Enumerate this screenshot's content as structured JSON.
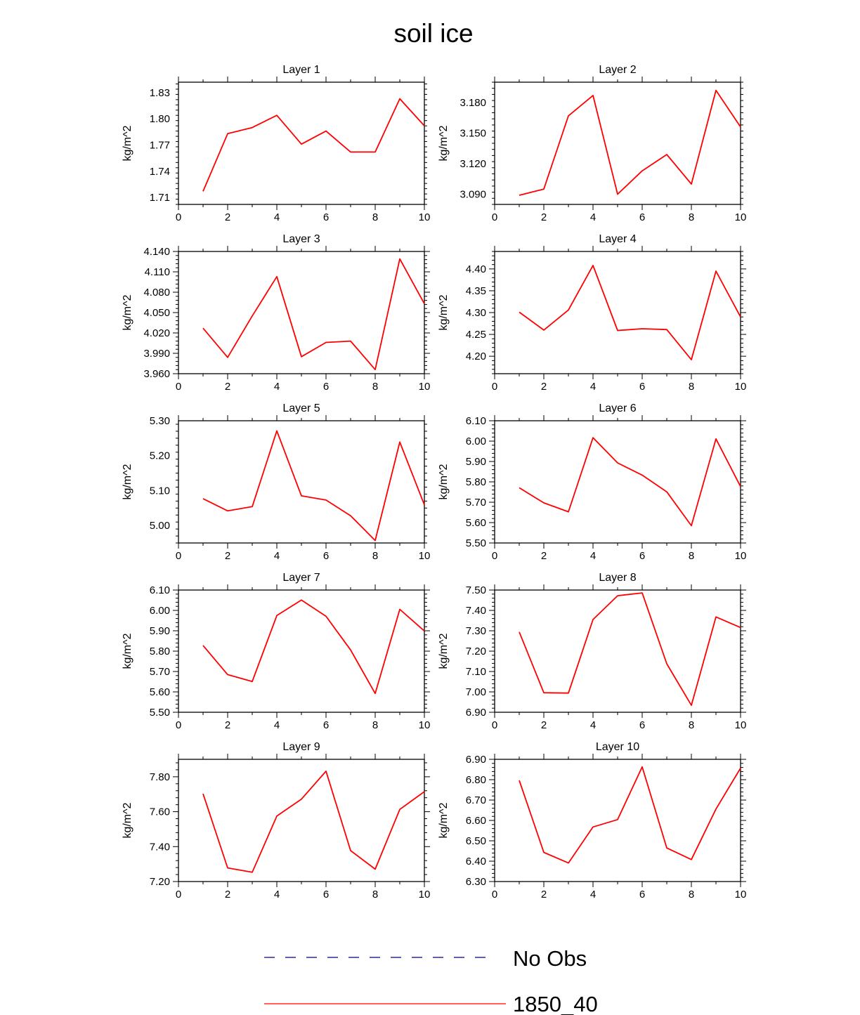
{
  "title": "soil ice",
  "colors": {
    "model": "#ff0000",
    "obs": "#000080"
  },
  "legend": [
    {
      "label": "No Obs",
      "style": "dashed",
      "color": "#000080"
    },
    {
      "label": "1850_40",
      "style": "solid",
      "color": "#ff0000"
    }
  ],
  "chart_data": [
    {
      "type": "line",
      "title": "Layer 1",
      "ylabel": "kg/m^2",
      "xlim": [
        0,
        10
      ],
      "ylim": [
        1.702,
        1.842
      ],
      "xticks": [
        "0",
        "2",
        "4",
        "6",
        "8",
        "10"
      ],
      "yticks": [
        "1.71",
        "1.74",
        "1.77",
        "1.80",
        "1.83"
      ],
      "ytick_values": [
        1.71,
        1.74,
        1.77,
        1.8,
        1.83
      ],
      "series": [
        {
          "name": "1850_40",
          "x": [
            1,
            2,
            3,
            4,
            5,
            6,
            7,
            8,
            9,
            10
          ],
          "y": [
            1.717,
            1.783,
            1.79,
            1.804,
            1.771,
            1.786,
            1.762,
            1.762,
            1.823,
            1.792
          ]
        }
      ]
    },
    {
      "type": "line",
      "title": "Layer 2",
      "ylabel": "kg/m^2",
      "xlim": [
        0,
        10
      ],
      "ylim": [
        3.08,
        3.2
      ],
      "xticks": [
        "0",
        "2",
        "4",
        "6",
        "8",
        "10"
      ],
      "yticks": [
        "3.090",
        "3.120",
        "3.150",
        "3.180"
      ],
      "ytick_values": [
        3.09,
        3.12,
        3.15,
        3.18
      ],
      "series": [
        {
          "name": "1850_40",
          "x": [
            1,
            2,
            3,
            4,
            5,
            6,
            7,
            8,
            9,
            10
          ],
          "y": [
            3.089,
            3.095,
            3.167,
            3.187,
            3.09,
            3.113,
            3.129,
            3.1,
            3.192,
            3.156
          ]
        }
      ]
    },
    {
      "type": "line",
      "title": "Layer 3",
      "ylabel": "kg/m^2",
      "xlim": [
        0,
        10
      ],
      "ylim": [
        3.96,
        4.14
      ],
      "xticks": [
        "0",
        "2",
        "4",
        "6",
        "8",
        "10"
      ],
      "yticks": [
        "3.960",
        "3.990",
        "4.020",
        "4.050",
        "4.080",
        "4.110",
        "4.140"
      ],
      "ytick_values": [
        3.96,
        3.99,
        4.02,
        4.05,
        4.08,
        4.11,
        4.14
      ],
      "series": [
        {
          "name": "1850_40",
          "x": [
            1,
            2,
            3,
            4,
            5,
            6,
            7,
            8,
            9,
            10
          ],
          "y": [
            4.027,
            3.984,
            4.045,
            4.103,
            3.985,
            4.006,
            4.008,
            3.966,
            4.129,
            4.063
          ]
        }
      ]
    },
    {
      "type": "line",
      "title": "Layer 4",
      "ylabel": "kg/m^2",
      "xlim": [
        0,
        10
      ],
      "ylim": [
        4.16,
        4.44
      ],
      "xticks": [
        "0",
        "2",
        "4",
        "6",
        "8",
        "10"
      ],
      "yticks": [
        "4.20",
        "4.25",
        "4.30",
        "4.35",
        "4.40"
      ],
      "ytick_values": [
        4.2,
        4.25,
        4.3,
        4.35,
        4.4
      ],
      "series": [
        {
          "name": "1850_40",
          "x": [
            1,
            2,
            3,
            4,
            5,
            6,
            7,
            8,
            9,
            10
          ],
          "y": [
            4.301,
            4.26,
            4.306,
            4.408,
            4.259,
            4.263,
            4.261,
            4.192,
            4.395,
            4.29
          ]
        }
      ]
    },
    {
      "type": "line",
      "title": "Layer 5",
      "ylabel": "kg/m^2",
      "xlim": [
        0,
        10
      ],
      "ylim": [
        4.95,
        5.3
      ],
      "xticks": [
        "0",
        "2",
        "4",
        "6",
        "8",
        "10"
      ],
      "yticks": [
        "5.00",
        "5.10",
        "5.20",
        "5.30"
      ],
      "ytick_values": [
        5.0,
        5.1,
        5.2,
        5.3
      ],
      "series": [
        {
          "name": "1850_40",
          "x": [
            1,
            2,
            3,
            4,
            5,
            6,
            7,
            8,
            9,
            10
          ],
          "y": [
            5.077,
            5.042,
            5.054,
            5.271,
            5.085,
            5.073,
            5.028,
            4.957,
            5.239,
            5.059
          ]
        }
      ]
    },
    {
      "type": "line",
      "title": "Layer 6",
      "ylabel": "kg/m^2",
      "xlim": [
        0,
        10
      ],
      "ylim": [
        5.5,
        6.1
      ],
      "xticks": [
        "0",
        "2",
        "4",
        "6",
        "8",
        "10"
      ],
      "yticks": [
        "5.50",
        "5.60",
        "5.70",
        "5.80",
        "5.90",
        "6.00",
        "6.10"
      ],
      "ytick_values": [
        5.5,
        5.6,
        5.7,
        5.8,
        5.9,
        6.0,
        6.1
      ],
      "series": [
        {
          "name": "1850_40",
          "x": [
            1,
            2,
            3,
            4,
            5,
            6,
            7,
            8,
            9,
            10
          ],
          "y": [
            5.771,
            5.697,
            5.653,
            6.017,
            5.893,
            5.833,
            5.751,
            5.585,
            6.011,
            5.777
          ]
        }
      ]
    },
    {
      "type": "line",
      "title": "Layer 7",
      "ylabel": "kg/m^2",
      "xlim": [
        0,
        10
      ],
      "ylim": [
        5.5,
        6.1
      ],
      "xticks": [
        "0",
        "2",
        "4",
        "6",
        "8",
        "10"
      ],
      "yticks": [
        "5.50",
        "5.60",
        "5.70",
        "5.80",
        "5.90",
        "6.00",
        "6.10"
      ],
      "ytick_values": [
        5.5,
        5.6,
        5.7,
        5.8,
        5.9,
        6.0,
        6.1
      ],
      "series": [
        {
          "name": "1850_40",
          "x": [
            1,
            2,
            3,
            4,
            5,
            6,
            7,
            8,
            9,
            10
          ],
          "y": [
            5.828,
            5.685,
            5.651,
            5.975,
            6.051,
            5.971,
            5.806,
            5.592,
            6.005,
            5.899
          ]
        }
      ]
    },
    {
      "type": "line",
      "title": "Layer 8",
      "ylabel": "kg/m^2",
      "xlim": [
        0,
        10
      ],
      "ylim": [
        6.9,
        7.5
      ],
      "xticks": [
        "0",
        "2",
        "4",
        "6",
        "8",
        "10"
      ],
      "yticks": [
        "6.90",
        "7.00",
        "7.10",
        "7.20",
        "7.30",
        "7.40",
        "7.50"
      ],
      "ytick_values": [
        6.9,
        7.0,
        7.1,
        7.2,
        7.3,
        7.4,
        7.5
      ],
      "series": [
        {
          "name": "1850_40",
          "x": [
            1,
            2,
            3,
            4,
            5,
            6,
            7,
            8,
            9,
            10
          ],
          "y": [
            7.294,
            6.996,
            6.994,
            7.355,
            7.472,
            7.486,
            7.138,
            6.934,
            7.368,
            7.316
          ]
        }
      ]
    },
    {
      "type": "line",
      "title": "Layer 9",
      "ylabel": "kg/m^2",
      "xlim": [
        0,
        10
      ],
      "ylim": [
        7.2,
        7.9
      ],
      "xticks": [
        "0",
        "2",
        "4",
        "6",
        "8",
        "10"
      ],
      "yticks": [
        "7.20",
        "7.40",
        "7.60",
        "7.80"
      ],
      "ytick_values": [
        7.2,
        7.4,
        7.6,
        7.8
      ],
      "series": [
        {
          "name": "1850_40",
          "x": [
            1,
            2,
            3,
            4,
            5,
            6,
            7,
            8,
            9,
            10
          ],
          "y": [
            7.703,
            7.278,
            7.253,
            7.575,
            7.672,
            7.832,
            7.377,
            7.271,
            7.613,
            7.715
          ]
        }
      ]
    },
    {
      "type": "line",
      "title": "Layer 10",
      "ylabel": "kg/m^2",
      "xlim": [
        0,
        10
      ],
      "ylim": [
        6.3,
        6.9
      ],
      "xticks": [
        "0",
        "2",
        "4",
        "6",
        "8",
        "10"
      ],
      "yticks": [
        "6.30",
        "6.40",
        "6.50",
        "6.60",
        "6.70",
        "6.80",
        "6.90"
      ],
      "ytick_values": [
        6.3,
        6.4,
        6.5,
        6.6,
        6.7,
        6.8,
        6.9
      ],
      "series": [
        {
          "name": "1850_40",
          "x": [
            1,
            2,
            3,
            4,
            5,
            6,
            7,
            8,
            9,
            10
          ],
          "y": [
            6.797,
            6.443,
            6.391,
            6.568,
            6.604,
            6.863,
            6.465,
            6.408,
            6.656,
            6.857
          ]
        }
      ]
    }
  ]
}
